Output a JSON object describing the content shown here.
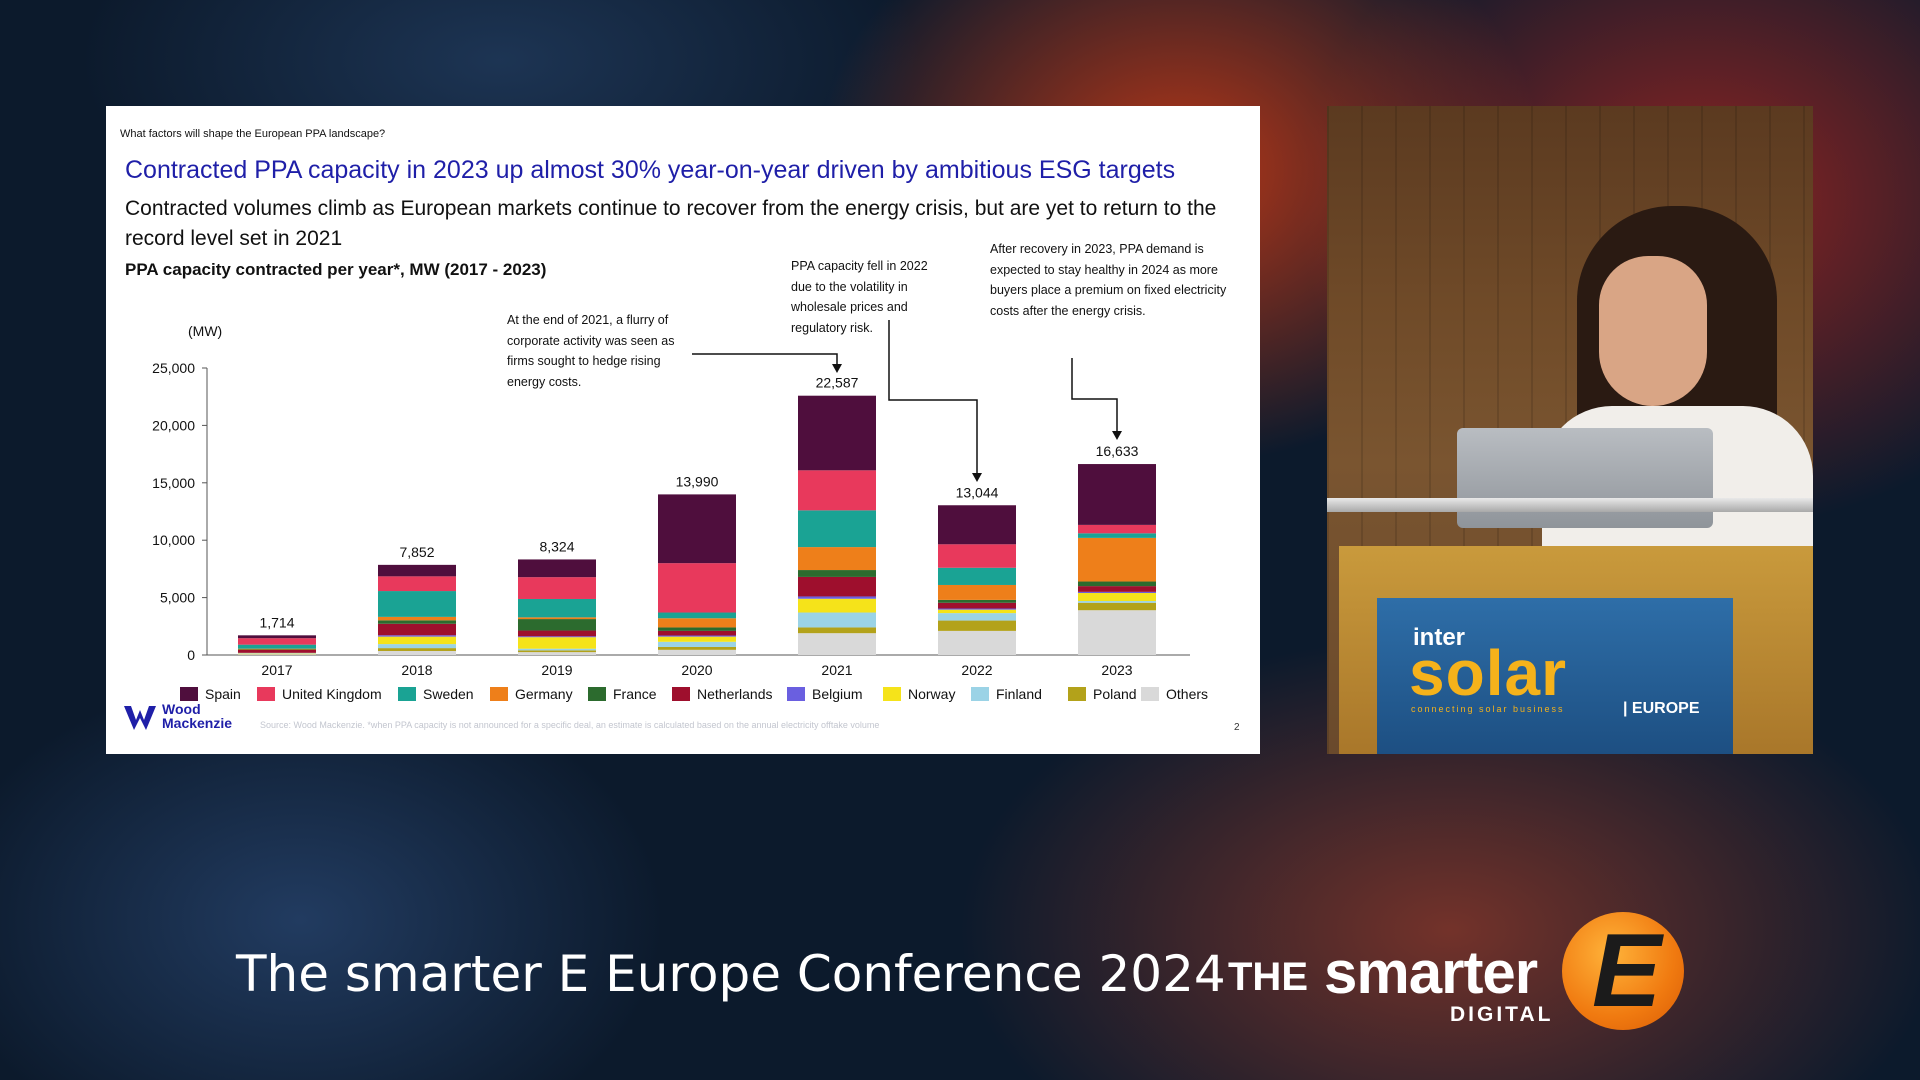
{
  "slide": {
    "kicker": "What factors will shape the European  PPA landscape?",
    "headline": "Contracted PPA capacity in 2023 up almost 30% year-on-year driven by ambitious ESG targets",
    "subhead": "Contracted volumes climb as European markets continue to recover from the energy crisis, but are yet to return to the record level set in 2021",
    "source": "Source: Wood Mackenzie. *when PPA capacity is not announced for a specific deal, an estimate is calculated based on the annual electricity offtake volume",
    "page_number": "2",
    "logo_line1": "Wood",
    "logo_line2": "Mackenzie",
    "annotations": {
      "y2021": "At the end of 2021, a flurry of corporate activity was seen as firms sought to hedge rising energy costs.",
      "y2022": "PPA capacity fell in 2022 due to the volatility in wholesale prices and regulatory risk.",
      "y2023": "After recovery in 2023, PPA demand is expected to stay healthy in 2024 as more buyers place a premium on fixed electricity costs after the energy crisis."
    }
  },
  "chart_data": {
    "type": "bar",
    "stacked": true,
    "title": "PPA capacity contracted per year*, MW (2017 - 2023)",
    "ylabel": "(MW)",
    "xlabel": "",
    "ylim": [
      0,
      25000
    ],
    "yticks": [
      0,
      5000,
      10000,
      15000,
      20000,
      25000
    ],
    "ytick_labels": [
      "0",
      "5,000",
      "10,000",
      "15,000",
      "20,000",
      "25,000"
    ],
    "grid": false,
    "legend_position": "bottom",
    "categories": [
      "2017",
      "2018",
      "2019",
      "2020",
      "2021",
      "2022",
      "2023"
    ],
    "totals": [
      1714,
      7852,
      8324,
      13990,
      22587,
      13044,
      16633
    ],
    "total_labels": [
      "1,714",
      "7,852",
      "8,324",
      "13,990",
      "22,587",
      "13,044",
      "16,633"
    ],
    "series": [
      {
        "name": "Others",
        "color": "#d9d9d9",
        "values": [
          60,
          350,
          250,
          450,
          1900,
          2100,
          3900
        ]
      },
      {
        "name": "Poland",
        "color": "#b3a21a",
        "values": [
          40,
          250,
          150,
          250,
          500,
          900,
          650
        ]
      },
      {
        "name": "Finland",
        "color": "#9bd3e6",
        "values": [
          50,
          350,
          150,
          450,
          1300,
          650,
          150
        ]
      },
      {
        "name": "Norway",
        "color": "#f5e31a",
        "values": [
          30,
          650,
          1000,
          450,
          1200,
          300,
          700
        ]
      },
      {
        "name": "Belgium",
        "color": "#6a5fe0",
        "values": [
          10,
          120,
          80,
          100,
          200,
          100,
          100
        ]
      },
      {
        "name": "Netherlands",
        "color": "#9e0f2d",
        "values": [
          250,
          1000,
          500,
          400,
          1700,
          500,
          500
        ]
      },
      {
        "name": "France",
        "color": "#2c6b2e",
        "values": [
          40,
          300,
          1000,
          300,
          600,
          250,
          400
        ]
      },
      {
        "name": "Germany",
        "color": "#ee7f1a",
        "values": [
          70,
          300,
          150,
          800,
          2000,
          1300,
          3800
        ]
      },
      {
        "name": "Sweden",
        "color": "#1aa394",
        "values": [
          350,
          2250,
          1600,
          500,
          3200,
          1500,
          400
        ]
      },
      {
        "name": "United Kingdom",
        "color": "#e8395c",
        "values": [
          564,
          1282,
          1900,
          4300,
          3487,
          2044,
          733
        ]
      },
      {
        "name": "Spain",
        "color": "#4f0e3d",
        "values": [
          250,
          1000,
          1544,
          5990,
          6500,
          3400,
          5300
        ]
      }
    ],
    "legend_order": [
      "Spain",
      "United Kingdom",
      "Sweden",
      "Germany",
      "France",
      "Netherlands",
      "Belgium",
      "Norway",
      "Finland",
      "Poland",
      "Others"
    ]
  },
  "overlay": {
    "conference_title": "The smarter E Europe Conference 2024",
    "brand_the": "THE",
    "brand_smarter": "smarter",
    "brand_e": "E",
    "brand_digital": "DIGITAL"
  },
  "podium_sign": {
    "word1": "inter",
    "word2": "solar",
    "tagline": "connecting solar business",
    "region": "| EUROPE"
  },
  "colors": {
    "headline": "#1f1fa8",
    "brand_orange": "#f07a10",
    "podium_sign_blue": "#2e6ea8"
  }
}
